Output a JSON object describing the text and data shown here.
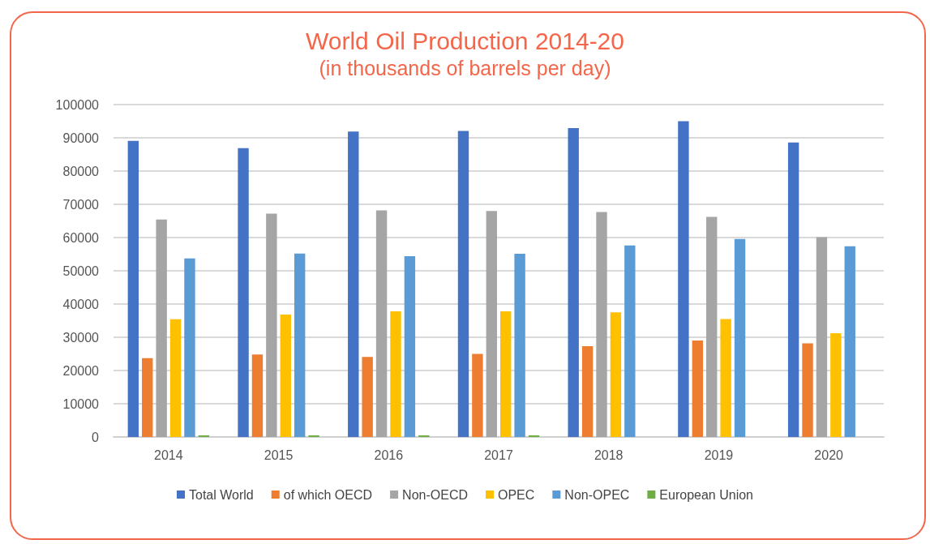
{
  "chart_data": {
    "type": "bar",
    "title": "World Oil Production 2014-20",
    "subtitle": "(in thousands of barrels per day)",
    "categories": [
      "2014",
      "2015",
      "2016",
      "2017",
      "2018",
      "2019",
      "2020"
    ],
    "series": [
      {
        "name": "Total World",
        "color": "#4472c4",
        "values": [
          89100,
          86900,
          91900,
          92100,
          92900,
          95000,
          88600
        ]
      },
      {
        "name": "of which OECD",
        "color": "#ed7d31",
        "values": [
          23700,
          24800,
          24100,
          25000,
          27300,
          29000,
          28200
        ]
      },
      {
        "name": "Non-OECD",
        "color": "#a5a5a5",
        "values": [
          65400,
          67200,
          68200,
          68000,
          67700,
          66200,
          60100
        ]
      },
      {
        "name": "OPEC",
        "color": "#ffc000",
        "values": [
          35400,
          36800,
          37800,
          37800,
          37500,
          35500,
          31200
        ]
      },
      {
        "name": "Non-OPEC",
        "color": "#5b9bd5",
        "values": [
          53700,
          55200,
          54400,
          55100,
          57600,
          59600,
          57400
        ]
      },
      {
        "name": "European Union",
        "color": "#70ad47",
        "values": [
          500,
          500,
          500,
          500,
          null,
          null,
          null
        ]
      }
    ],
    "ylim": [
      0,
      100000
    ],
    "yticks": [
      0,
      10000,
      20000,
      30000,
      40000,
      50000,
      60000,
      70000,
      80000,
      90000,
      100000
    ],
    "grid": "y",
    "legend": "bottom"
  }
}
